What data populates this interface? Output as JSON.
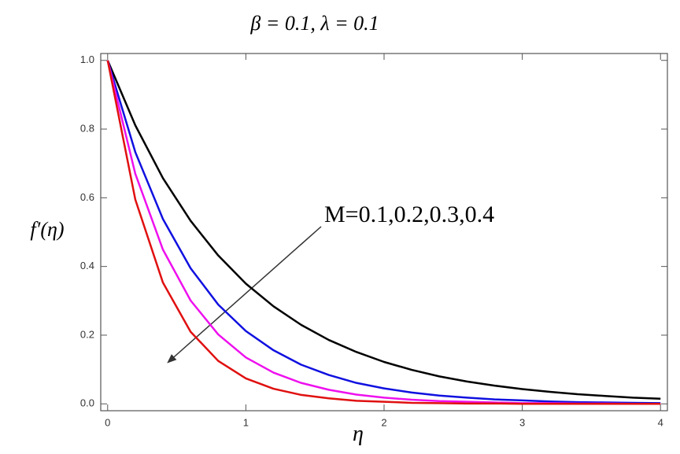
{
  "chart_data": {
    "type": "line",
    "title": "β = 0.1, λ = 0.1",
    "x_label": "η",
    "y_label": "f′(η)",
    "annotation": "M=0.1,0.2,0.3,0.4",
    "x": [
      0,
      0.2,
      0.4,
      0.6,
      0.8,
      1.0,
      1.2,
      1.4,
      1.6,
      1.8,
      2.0,
      2.2,
      2.4,
      2.6,
      2.8,
      3.0,
      3.2,
      3.4,
      3.6,
      3.8,
      4.0
    ],
    "series": [
      {
        "color": "#000000",
        "values": [
          1,
          0.811,
          0.657,
          0.533,
          0.432,
          0.35,
          0.284,
          0.23,
          0.186,
          0.151,
          0.122,
          0.099,
          0.08,
          0.065,
          0.053,
          0.043,
          0.035,
          0.028,
          0.023,
          0.018,
          0.015
        ]
      },
      {
        "color": "#1010e0",
        "values": [
          1,
          0.733,
          0.538,
          0.395,
          0.289,
          0.212,
          0.156,
          0.114,
          0.084,
          0.061,
          0.045,
          0.033,
          0.024,
          0.018,
          0.013,
          0.01,
          0.007,
          0.005,
          0.004,
          0.003,
          0.002
        ]
      },
      {
        "color": "#ee10ee",
        "values": [
          1,
          0.67,
          0.449,
          0.301,
          0.202,
          0.135,
          0.091,
          0.061,
          0.041,
          0.027,
          0.018,
          0.012,
          0.008,
          0.006,
          0.004,
          0.002,
          0.002,
          0.001,
          0.001,
          0,
          0
        ]
      },
      {
        "color": "#e01010",
        "values": [
          1,
          0.595,
          0.353,
          0.21,
          0.125,
          0.074,
          0.044,
          0.026,
          0.016,
          0.009,
          0.006,
          0.003,
          0.002,
          0.001,
          0.001,
          0,
          0,
          0,
          0,
          0,
          0
        ]
      }
    ],
    "xlim": [
      -0.05,
      4.05
    ],
    "ylim": [
      -0.02,
      1.02
    ],
    "xticks": [
      0,
      1,
      2,
      3,
      4
    ],
    "yticks": [
      {
        "value": 0,
        "label": "0.0"
      },
      0.2,
      0.4,
      0.6,
      0.8,
      {
        "value": 1,
        "label": "1.0"
      }
    ]
  }
}
